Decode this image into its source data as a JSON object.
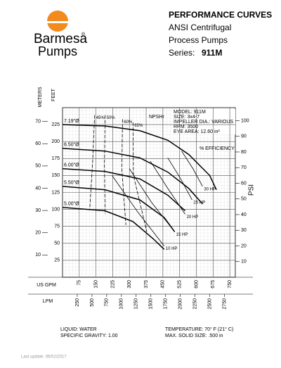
{
  "header": {
    "brand": "Barmesa",
    "brand_mark": "®",
    "brand_sub": "Pumps",
    "title": "PERFORMANCE CURVES",
    "line1": "ANSI Centrifugal",
    "line2": "Process Pumps",
    "series_label": "Series:",
    "series_value": "911M"
  },
  "chart_data": {
    "type": "line",
    "y_label": "FEET",
    "y2_label": "METERS",
    "y3_label": "PSI",
    "x_label": "US GPM",
    "x2_label": "LPM",
    "xlim": [
      0,
      775
    ],
    "xticks": [
      75,
      150,
      225,
      300,
      375,
      450,
      525,
      600,
      675,
      750
    ],
    "x2lim": [
      0,
      2934
    ],
    "x2ticks": [
      250,
      500,
      750,
      1000,
      1250,
      1500,
      1750,
      2000,
      2250,
      2500,
      2750
    ],
    "ylim": [
      0,
      250
    ],
    "yticks": [
      25,
      50,
      75,
      100,
      125,
      150,
      175,
      200,
      225
    ],
    "y2lim": [
      0,
      76.2
    ],
    "y2ticks": [
      10,
      20,
      30,
      40,
      50,
      60,
      70
    ],
    "y3lim": [
      0,
      108.3
    ],
    "y3ticks": [
      10,
      20,
      30,
      40,
      50,
      60,
      70,
      80,
      90,
      100
    ],
    "grid": true,
    "series": [
      {
        "name": "7.19\"Ø",
        "style": "solid",
        "color": "#000",
        "x": [
          0,
          190,
          347,
          472,
          566,
          660,
          690
        ],
        "values": [
          225,
          223,
          216,
          202,
          181,
          150,
          129
        ]
      },
      {
        "name": "6.50\"Ø",
        "style": "solid",
        "color": "#000",
        "x": [
          0,
          190,
          347,
          472,
          566,
          628
        ],
        "values": [
          190,
          186,
          176,
          155,
          131,
          108
        ]
      },
      {
        "name": "6.00\"Ø",
        "style": "solid",
        "color": "#000",
        "x": [
          0,
          190,
          347,
          472,
          550
        ],
        "values": [
          160,
          156,
          145,
          121,
          98
        ]
      },
      {
        "name": "5.50\"Ø",
        "style": "solid",
        "color": "#000",
        "x": [
          0,
          190,
          347,
          456,
          503
        ],
        "values": [
          134,
          129,
          114,
          88,
          67
        ]
      },
      {
        "name": "5.00\"Ø",
        "style": "solid",
        "color": "#000",
        "x": [
          0,
          190,
          316,
          409,
          456
        ],
        "values": [
          103,
          98,
          82,
          56,
          41
        ]
      },
      {
        "name": "45%",
        "style": "dashed",
        "color": "#000",
        "x": [
          144,
          135,
          122
        ],
        "values": [
          239,
          170,
          100
        ]
      },
      {
        "name": "50%",
        "style": "dashed",
        "color": "#000",
        "x": [
          191,
          188,
          191
        ],
        "values": [
          239,
          165,
          93
        ]
      },
      {
        "name": "60%",
        "style": "dashed",
        "color": "#000",
        "x": [
          269,
          266,
          284
        ],
        "values": [
          233,
          160,
          77
        ]
      },
      {
        "name": "65%",
        "style": "dashed",
        "color": "#000",
        "x": [
          316,
          318,
          378
        ],
        "values": [
          228,
          150,
          67
        ]
      },
      {
        "name": "10 HP",
        "style": "thin",
        "color": "#000",
        "x": [
          222,
          340,
          456
        ],
        "values": [
          150,
          95,
          46
        ]
      },
      {
        "name": "15 HP",
        "style": "thin",
        "color": "#000",
        "x": [
          300,
          400,
          503
        ],
        "values": [
          160,
          110,
          67
        ]
      },
      {
        "name": "20 HP",
        "style": "thin",
        "color": "#000",
        "x": [
          394,
          470,
          550
        ],
        "values": [
          171,
          132,
          93
        ]
      },
      {
        "name": "25 HP",
        "style": "thin",
        "color": "#000",
        "x": [
          472,
          530,
          581
        ],
        "values": [
          176,
          145,
          114
        ]
      },
      {
        "name": "30 HP",
        "style": "thin",
        "color": "#000",
        "x": [
          534,
          585,
          628
        ],
        "values": [
          186,
          160,
          134
        ]
      }
    ],
    "info": [
      "MODEL: 911M",
      "SIZE: 3x4-7",
      "IMPELLER DIA.: VARIOUS",
      "RPM: 3500",
      "EYE AREA: 12.60 in²"
    ],
    "npsh_label": "NPSHr",
    "efficiency_label": "% EFFICIENCY"
  },
  "footer": {
    "left1": "LIQUID: WATER",
    "left2": "SPECIFIC GRAVITY: 1.00",
    "right1": "TEMPERATURE: 70° F (21° C)",
    "right2": "MAX. SOLID SIZE: .500 in",
    "update": "Last update: 06/02/2017"
  }
}
